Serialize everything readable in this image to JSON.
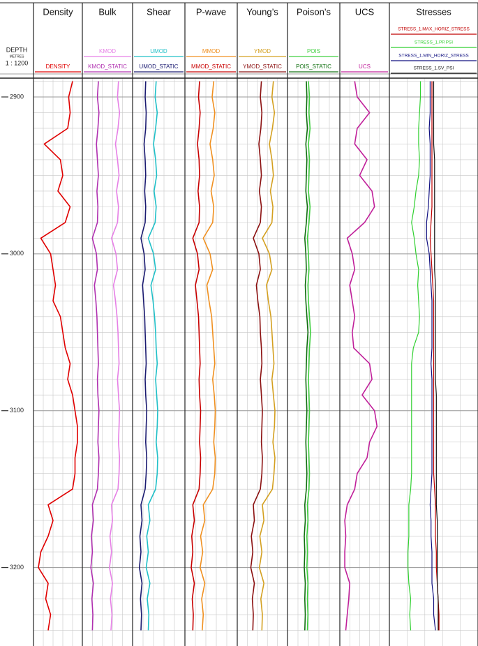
{
  "chart_data": {
    "type": "well-log",
    "depth_label": "DEPTH",
    "depth_unit": "METRES",
    "scale": "1 : 1200",
    "ylim": [
      2888,
      3250
    ],
    "yticks": [
      2900,
      3000,
      3100,
      3200
    ],
    "depth": [
      2890,
      2900,
      2910,
      2920,
      2930,
      2940,
      2950,
      2960,
      2970,
      2980,
      2990,
      3000,
      3010,
      3020,
      3030,
      3040,
      3050,
      3060,
      3070,
      3080,
      3090,
      3100,
      3110,
      3120,
      3130,
      3140,
      3150,
      3160,
      3170,
      3180,
      3190,
      3200,
      3210,
      3220,
      3230,
      3240
    ],
    "tracks": [
      {
        "title": "Density",
        "xlim": [
          0,
          100
        ],
        "series": [
          {
            "name": "DENSITY",
            "color": "#e00000",
            "values": [
              80,
              72,
              75,
              70,
              22,
              55,
              60,
              50,
              75,
              65,
              15,
              35,
              40,
              45,
              40,
              55,
              60,
              65,
              75,
              70,
              80,
              85,
              90,
              90,
              85,
              85,
              80,
              30,
              40,
              30,
              15,
              10,
              30,
              25,
              35,
              30
            ]
          }
        ]
      },
      {
        "title": "Bulk",
        "xlim": [
          0,
          100
        ],
        "series": [
          {
            "name": "KMOD",
            "color": "#e680e6",
            "values": [
              72,
              70,
              74,
              71,
              66,
              70,
              73,
              68,
              72,
              70,
              58,
              67,
              70,
              62,
              66,
              69,
              71,
              72,
              73,
              70,
              72,
              74,
              73,
              72,
              74,
              73,
              71,
              58,
              60,
              55,
              58,
              54,
              60,
              56,
              59,
              57
            ]
          },
          {
            "name": "KMOD_STATIC",
            "color": "#b030b0",
            "values": [
              32,
              30,
              33,
              31,
              28,
              30,
              32,
              29,
              31,
              30,
              20,
              28,
              30,
              24,
              27,
              29,
              30,
              31,
              32,
              30,
              31,
              33,
              32,
              31,
              33,
              32,
              30,
              20,
              22,
              18,
              20,
              17,
              22,
              19,
              21,
              20
            ]
          }
        ]
      },
      {
        "title": "Shear",
        "xlim": [
          0,
          100
        ],
        "series": [
          {
            "name": "UMOD",
            "color": "#20c0c8",
            "values": [
              45,
              43,
              47,
              44,
              40,
              44,
              46,
              41,
              45,
              43,
              30,
              40,
              44,
              35,
              39,
              42,
              44,
              45,
              47,
              44,
              46,
              48,
              47,
              45,
              48,
              47,
              44,
              30,
              33,
              27,
              30,
              26,
              33,
              28,
              31,
              30
            ]
          },
          {
            "name": "UMOD_STATIC",
            "color": "#1a1a70",
            "values": [
              25,
              24,
              26,
              25,
              22,
              24,
              25,
              23,
              25,
              24,
              16,
              22,
              24,
              19,
              21,
              23,
              24,
              25,
              26,
              24,
              25,
              27,
              26,
              25,
              27,
              26,
              24,
              16,
              18,
              14,
              16,
              13,
              18,
              15,
              17,
              16
            ]
          }
        ]
      },
      {
        "title": "P-wave",
        "xlim": [
          0,
          100
        ],
        "series": [
          {
            "name": "MMOD",
            "color": "#f09020",
            "values": [
              55,
              52,
              57,
              54,
              48,
              53,
              56,
              50,
              55,
              53,
              35,
              48,
              53,
              42,
              46,
              51,
              53,
              55,
              57,
              53,
              56,
              58,
              57,
              55,
              58,
              57,
              53,
              35,
              38,
              30,
              34,
              29,
              38,
              32,
              35,
              33
            ]
          },
          {
            "name": "MMOD_STATIC",
            "color": "#c80000",
            "values": [
              28,
              26,
              29,
              27,
              24,
              27,
              28,
              25,
              28,
              27,
              15,
              24,
              27,
              20,
              23,
              26,
              27,
              28,
              29,
              27,
              28,
              30,
              29,
              28,
              30,
              29,
              27,
              15,
              18,
              13,
              15,
              12,
              18,
              14,
              16,
              15
            ]
          }
        ]
      },
      {
        "title": "Young’s",
        "xlim": [
          0,
          100
        ],
        "series": [
          {
            "name": "YMOD",
            "color": "#d4a020",
            "values": [
              72,
              69,
              74,
              70,
              64,
              69,
              72,
              66,
              71,
              69,
              50,
              64,
              69,
              58,
              62,
              67,
              69,
              71,
              73,
              69,
              72,
              75,
              74,
              71,
              75,
              73,
              70,
              50,
              53,
              45,
              49,
              44,
              53,
              47,
              50,
              49
            ]
          },
          {
            "name": "YMOD_STATIC",
            "color": "#8b1010",
            "values": [
              48,
              46,
              49,
              47,
              43,
              46,
              48,
              44,
              48,
              46,
              32,
              43,
              46,
              38,
              41,
              45,
              46,
              48,
              49,
              46,
              48,
              50,
              49,
              48,
              50,
              49,
              46,
              32,
              34,
              28,
              31,
              27,
              34,
              30,
              32,
              31
            ]
          }
        ]
      },
      {
        "title": "Poison’s",
        "xlim": [
          0,
          100
        ],
        "series": [
          {
            "name": "POIS",
            "color": "#40d040",
            "values": [
              40,
              42,
              41,
              43,
              40,
              42,
              41,
              40,
              43,
              41,
              38,
              40,
              41,
              39,
              40,
              42,
              44,
              42,
              41,
              40,
              41,
              42,
              41,
              40,
              41,
              42,
              41,
              38,
              39,
              37,
              38,
              37,
              39,
              38,
              39,
              38
            ]
          },
          {
            "name": "POIS_STATIC",
            "color": "#107010",
            "values": [
              36,
              37,
              36,
              38,
              35,
              37,
              36,
              35,
              38,
              36,
              33,
              35,
              36,
              34,
              35,
              37,
              39,
              37,
              36,
              35,
              36,
              37,
              36,
              35,
              36,
              37,
              36,
              33,
              34,
              32,
              33,
              32,
              34,
              33,
              34,
              33
            ]
          }
        ]
      },
      {
        "title": "UCS",
        "xlim": [
          0,
          100
        ],
        "series": [
          {
            "name": "UCS",
            "color": "#c0209a",
            "values": [
              30,
              35,
              60,
              35,
              30,
              55,
              40,
              65,
              70,
              50,
              15,
              25,
              30,
              20,
              25,
              30,
              25,
              28,
              60,
              65,
              45,
              70,
              75,
              60,
              55,
              35,
              30,
              15,
              10,
              12,
              10,
              10,
              20,
              18,
              15,
              12
            ]
          }
        ]
      },
      {
        "title": "Stresses",
        "xlim": [
          0,
          100
        ],
        "series": [
          {
            "name": "STRESS_1.MAX_HORIZ_STRESS",
            "color": "#c00000",
            "values": [
              48,
              48,
              48,
              48,
              48,
              48,
              48,
              48,
              48,
              47,
              46,
              47,
              48,
              49,
              50,
              50,
              50,
              50,
              50,
              50,
              50,
              50,
              50,
              50,
              50,
              50,
              51,
              52,
              52,
              52,
              53,
              53,
              54,
              55,
              56,
              56
            ]
          },
          {
            "name": "STRESS_1.PP.PSI",
            "color": "#30d030",
            "values": [
              35,
              35,
              34,
              33,
              33,
              34,
              33,
              30,
              28,
              25,
              28,
              30,
              33,
              32,
              33,
              34,
              33,
              27,
              25,
              25,
              25,
              25,
              25,
              25,
              25,
              25,
              24,
              22,
              22,
              22,
              21,
              21,
              22,
              24,
              23,
              24
            ]
          },
          {
            "name": "STRESS_1.MIN_HORIZ_STRESS",
            "color": "#101080",
            "values": [
              46,
              46,
              46,
              45,
              46,
              46,
              46,
              45,
              44,
              42,
              42,
              45,
              46,
              47,
              48,
              48,
              48,
              48,
              47,
              48,
              48,
              48,
              48,
              48,
              48,
              48,
              47,
              46,
              47,
              47,
              48,
              48,
              48,
              50,
              50,
              52
            ]
          },
          {
            "name": "STRESS_1.SV_PSI",
            "color": "#111111",
            "values": [
              50,
              50,
              50,
              50,
              50,
              51,
              51,
              51,
              51,
              51,
              51,
              51,
              51,
              52,
              52,
              52,
              52,
              52,
              52,
              52,
              53,
              53,
              53,
              53,
              53,
              53,
              53,
              53,
              54,
              54,
              54,
              54,
              54,
              55,
              55,
              55
            ]
          }
        ]
      }
    ]
  }
}
